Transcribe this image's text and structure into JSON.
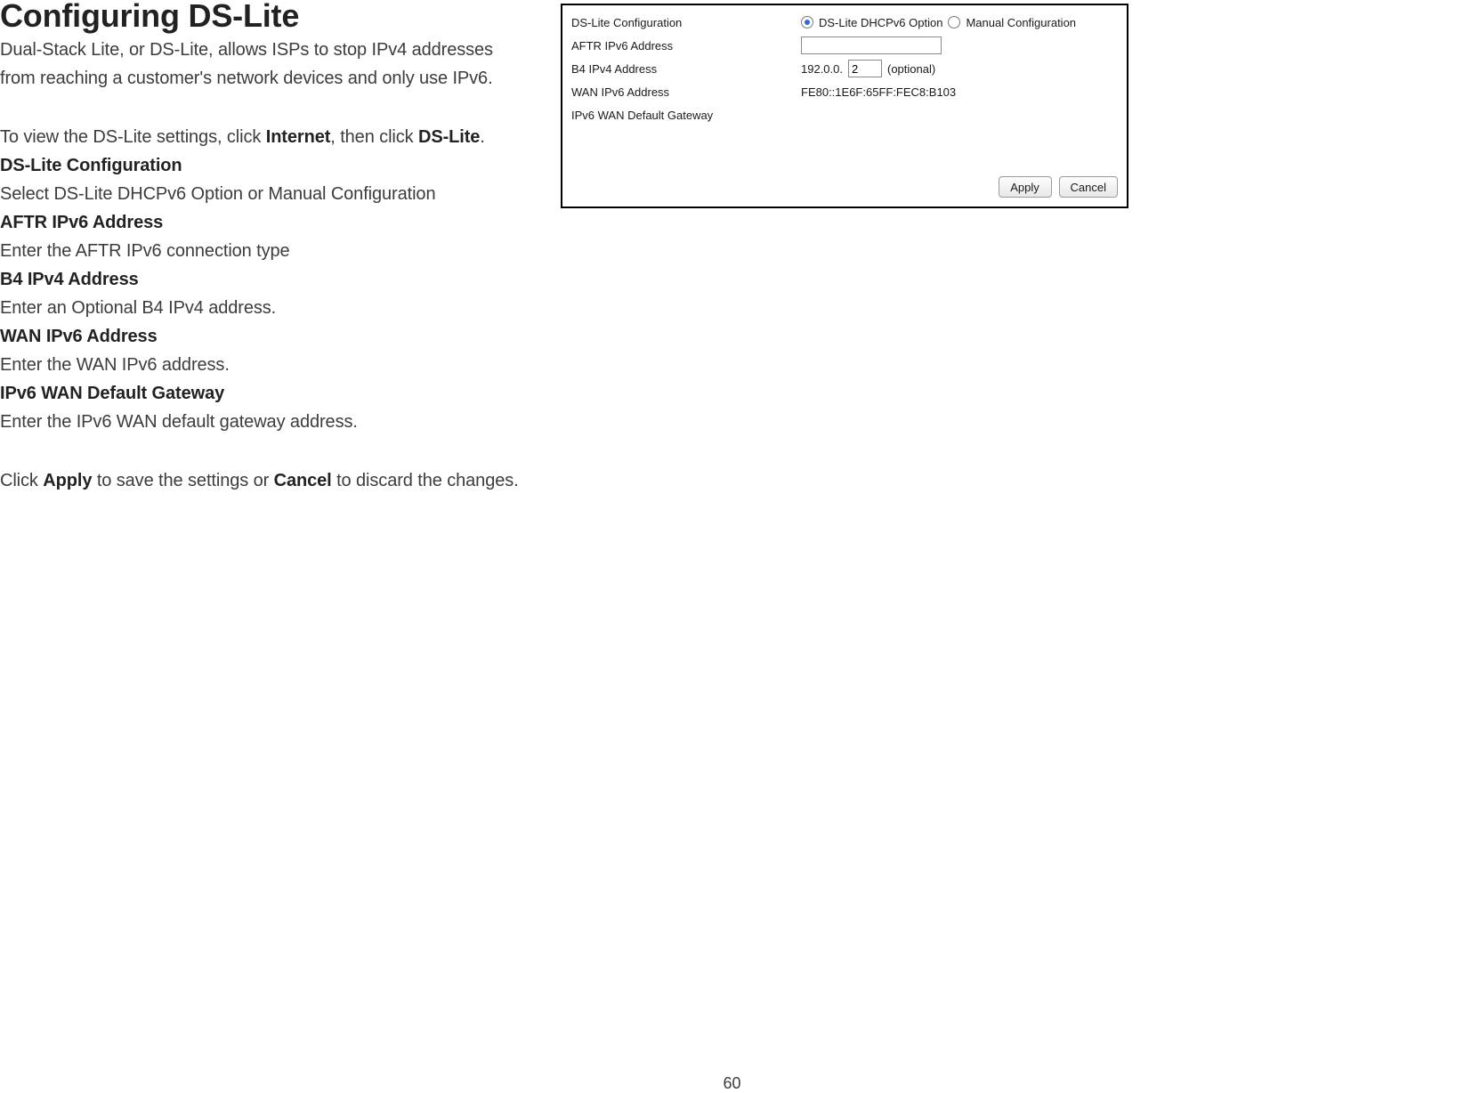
{
  "doc": {
    "title": "Configuring DS-Lite",
    "intro_line1": "Dual-Stack Lite, or DS-Lite, allows ISPs to stop IPv4 addresses",
    "intro_line2": "from reaching a customer's network devices and only use IPv6.",
    "nav_prefix": "To view the DS-Lite settings, click ",
    "nav_bold1": "Internet",
    "nav_mid": ", then click ",
    "nav_bold2": "DS-Lite",
    "nav_suffix": ".",
    "sections": {
      "dslite_cfg": {
        "label": "DS-Lite Configuration",
        "desc": "Select DS-Lite DHCPv6 Option or Manual Configuration"
      },
      "aftr": {
        "label": "AFTR IPv6 Address",
        "desc": "Enter the AFTR IPv6 connection type"
      },
      "b4": {
        "label": "B4 IPv4 Address",
        "desc": "Enter an Optional B4 IPv4 address."
      },
      "wan": {
        "label": "WAN IPv6 Address",
        "desc": "Enter the WAN IPv6 address."
      },
      "gw": {
        "label": "IPv6 WAN Default Gateway",
        "desc": "Enter the IPv6 WAN default gateway address."
      }
    },
    "closing_prefix": "Click ",
    "closing_bold1": "Apply",
    "closing_mid": " to save the settings or ",
    "closing_bold2": "Cancel",
    "closing_suffix": " to discard the changes.",
    "page_number": "60"
  },
  "panel": {
    "labels": {
      "dslite_cfg": "DS-Lite Configuration",
      "aftr": "AFTR IPv6 Address",
      "b4": "B4 IPv4 Address",
      "wan": "WAN IPv6 Address",
      "gw": "IPv6 WAN Default Gateway"
    },
    "radio": {
      "opt1": "DS-Lite DHCPv6 Option",
      "opt2": "Manual Configuration",
      "selected": "opt1"
    },
    "aftr_value": "",
    "b4_prefix": "192.0.0.",
    "b4_value": "2",
    "b4_suffix": "(optional)",
    "wan_value": "FE80::1E6F:65FF:FEC8:B103",
    "gw_value": "",
    "buttons": {
      "apply": "Apply",
      "cancel": "Cancel"
    },
    "colors": {
      "border": "#000000",
      "text": "#1a1a1a",
      "radio_dot": "#2d6bd1",
      "input_border": "#8a8a8a",
      "btn_border": "#9a9a9a"
    }
  }
}
